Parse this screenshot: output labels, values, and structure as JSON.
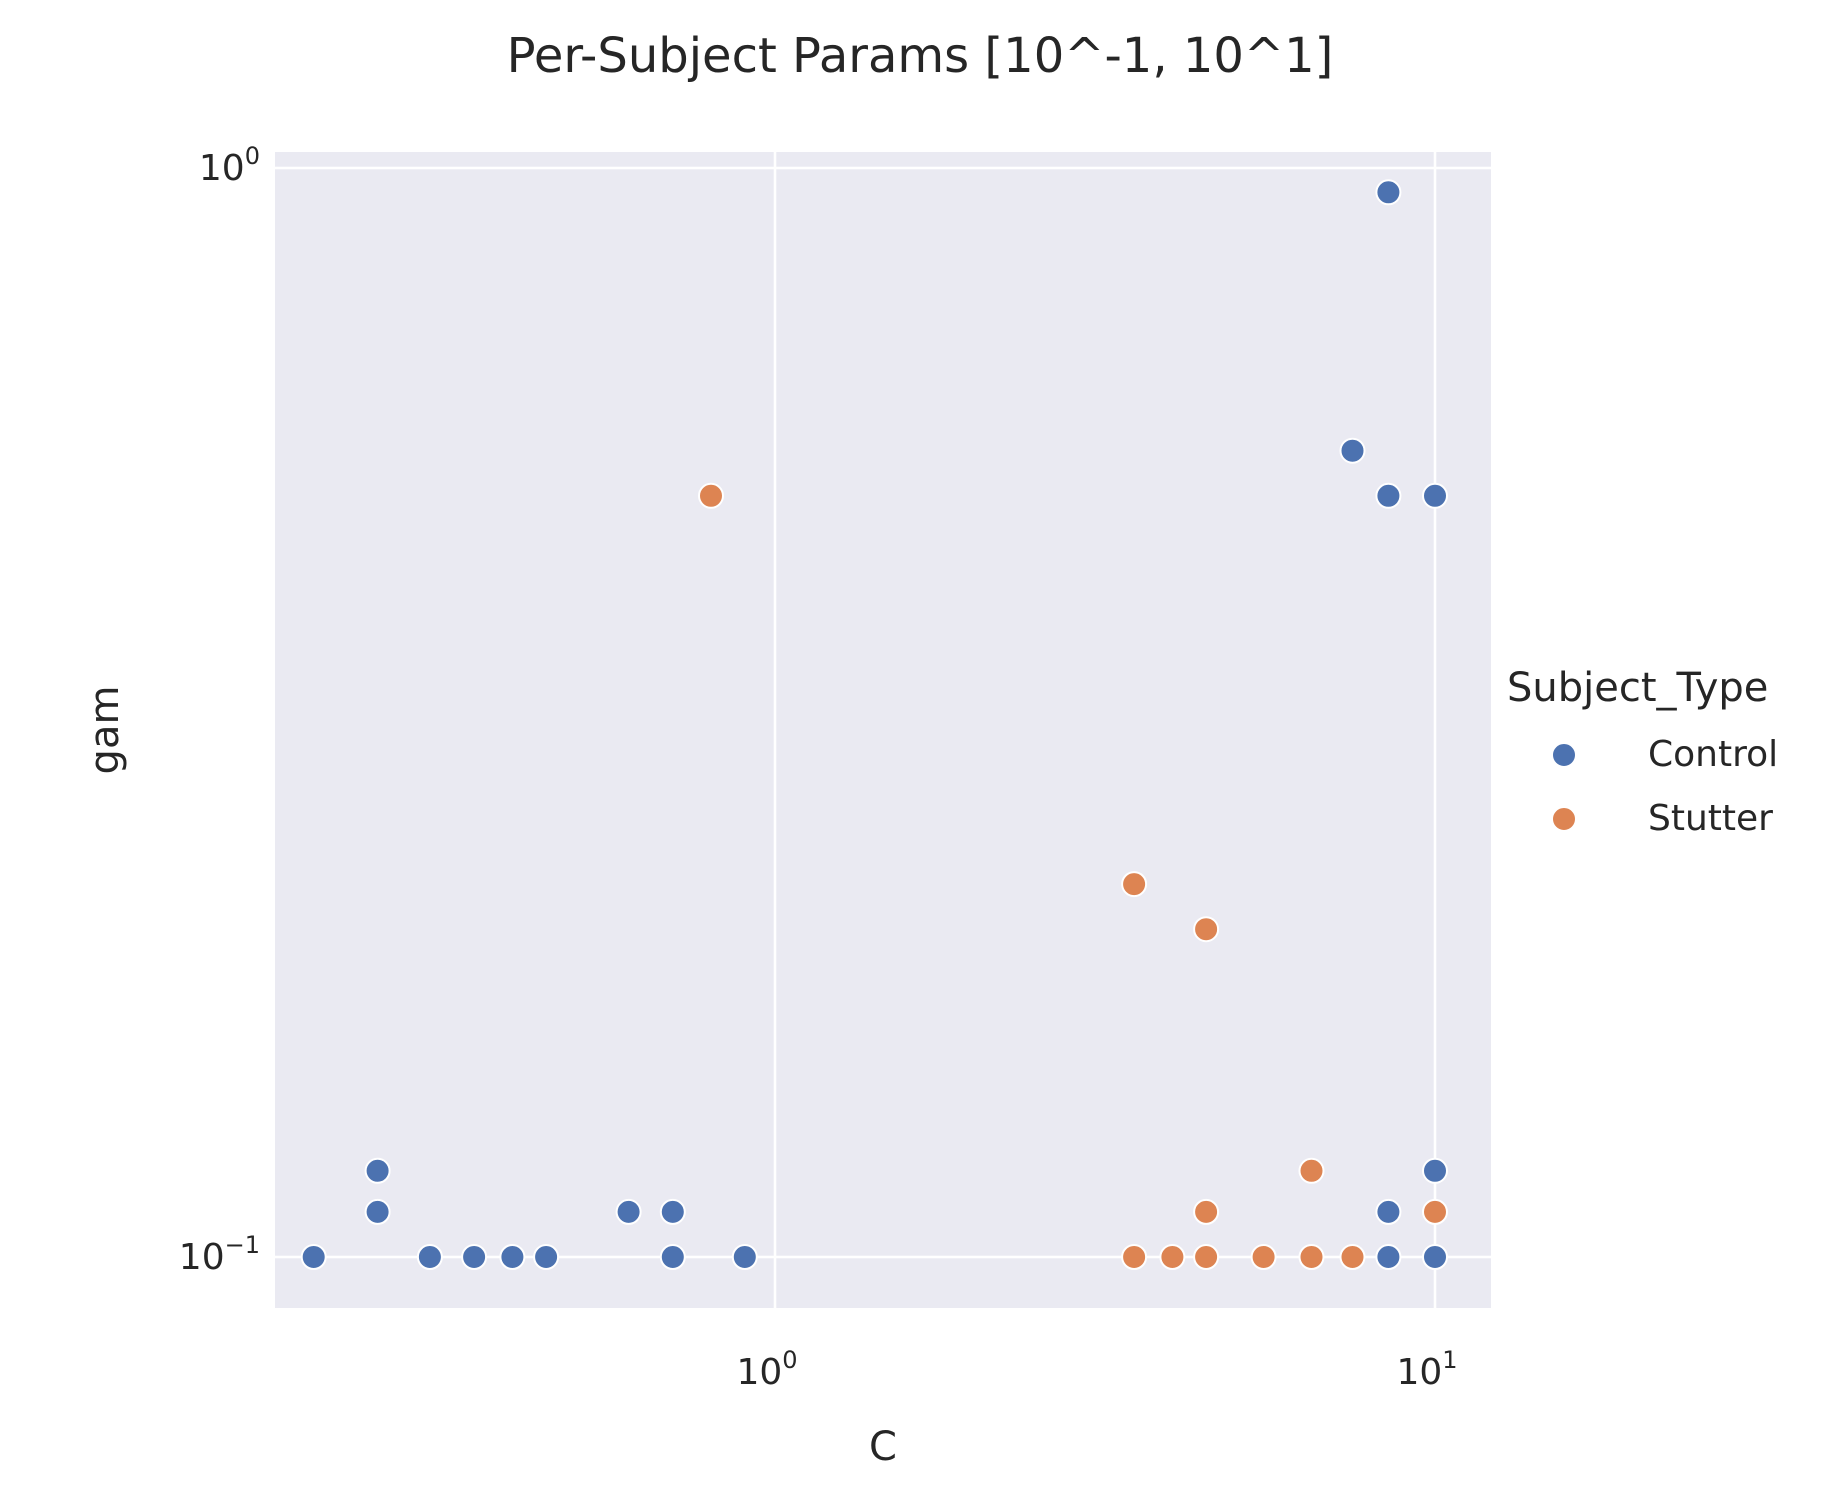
{
  "chart_data": {
    "type": "scatter",
    "title": "Per-Subject Params [10^-1, 10^1]",
    "xlabel": "C",
    "ylabel": "gam",
    "xscale": "log",
    "yscale": "log",
    "xlim": [
      0.18,
      11.8
    ],
    "ylim": [
      0.091,
      1.02
    ],
    "grid": true,
    "x_ticks": [
      {
        "base": "10",
        "exp": "0",
        "value": 1
      },
      {
        "base": "10",
        "exp": "1",
        "value": 10
      }
    ],
    "y_ticks": [
      {
        "base": "10",
        "exp": "0",
        "value": 1
      },
      {
        "base": "10",
        "exp": "−1",
        "value": 0.1
      }
    ],
    "legend": {
      "title": "Subject_Type",
      "position": "right",
      "entries": [
        "Control",
        "Stutter"
      ]
    },
    "colors": {
      "Control": "#4c72b0",
      "Stutter": "#dd8452",
      "plot_background": "#eaeaf2",
      "grid": "#ffffff"
    },
    "series": [
      {
        "name": "Control",
        "points": [
          [
            0.2,
            0.1
          ],
          [
            0.3,
            0.1
          ],
          [
            0.35,
            0.1
          ],
          [
            0.4,
            0.1
          ],
          [
            0.45,
            0.1
          ],
          [
            0.7,
            0.1
          ],
          [
            0.9,
            0.1
          ],
          [
            8.5,
            0.1
          ],
          [
            10,
            0.1
          ],
          [
            0.25,
            0.11
          ],
          [
            0.6,
            0.11
          ],
          [
            0.7,
            0.11
          ],
          [
            8.5,
            0.11
          ],
          [
            0.25,
            0.12
          ],
          [
            10,
            0.12
          ],
          [
            8.5,
            0.5
          ],
          [
            10,
            0.5
          ],
          [
            7.5,
            0.55
          ],
          [
            8.5,
            0.95
          ]
        ]
      },
      {
        "name": "Stutter",
        "points": [
          [
            3.5,
            0.1
          ],
          [
            4,
            0.1
          ],
          [
            4.5,
            0.1
          ],
          [
            5.5,
            0.1
          ],
          [
            6.5,
            0.1
          ],
          [
            7.5,
            0.1
          ],
          [
            4.5,
            0.11
          ],
          [
            10,
            0.11
          ],
          [
            6.5,
            0.12
          ],
          [
            4.5,
            0.2
          ],
          [
            3.5,
            0.22
          ],
          [
            0.8,
            0.5
          ]
        ]
      }
    ]
  }
}
